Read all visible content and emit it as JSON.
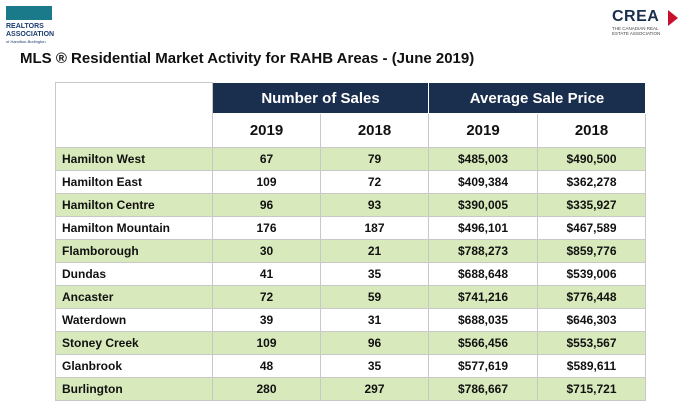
{
  "header": {
    "logo_left": {
      "line1": "REALTORS",
      "line2": "ASSOCIATION",
      "line3": "of Hamilton-Burlington"
    },
    "logo_right": {
      "name": "CREA",
      "subtitle1": "THE CANADIAN REAL",
      "subtitle2": "ESTATE ASSOCIATION"
    },
    "title": "MLS ® Residential Market Activity for RAHB Areas - (June 2019)"
  },
  "table": {
    "groups": [
      "Number of Sales",
      "Average Sale Price"
    ],
    "years": [
      "2019",
      "2018",
      "2019",
      "2018"
    ],
    "rows": [
      [
        "Hamilton West",
        "67",
        "79",
        "$485,003",
        "$490,500"
      ],
      [
        "Hamilton East",
        "109",
        "72",
        "$409,384",
        "$362,278"
      ],
      [
        "Hamilton Centre",
        "96",
        "93",
        "$390,005",
        "$335,927"
      ],
      [
        "Hamilton Mountain",
        "176",
        "187",
        "$496,101",
        "$467,589"
      ],
      [
        "Flamborough",
        "30",
        "21",
        "$788,273",
        "$859,776"
      ],
      [
        "Dundas",
        "41",
        "35",
        "$688,648",
        "$539,006"
      ],
      [
        "Ancaster",
        "72",
        "59",
        "$741,216",
        "$776,448"
      ],
      [
        "Waterdown",
        "39",
        "31",
        "$688,035",
        "$646,303"
      ],
      [
        "Stoney Creek",
        "109",
        "96",
        "$566,456",
        "$553,567"
      ],
      [
        "Glanbrook",
        "48",
        "35",
        "$577,619",
        "$589,611"
      ],
      [
        "Burlington",
        "280",
        "297",
        "$786,667",
        "$715,721"
      ]
    ]
  }
}
